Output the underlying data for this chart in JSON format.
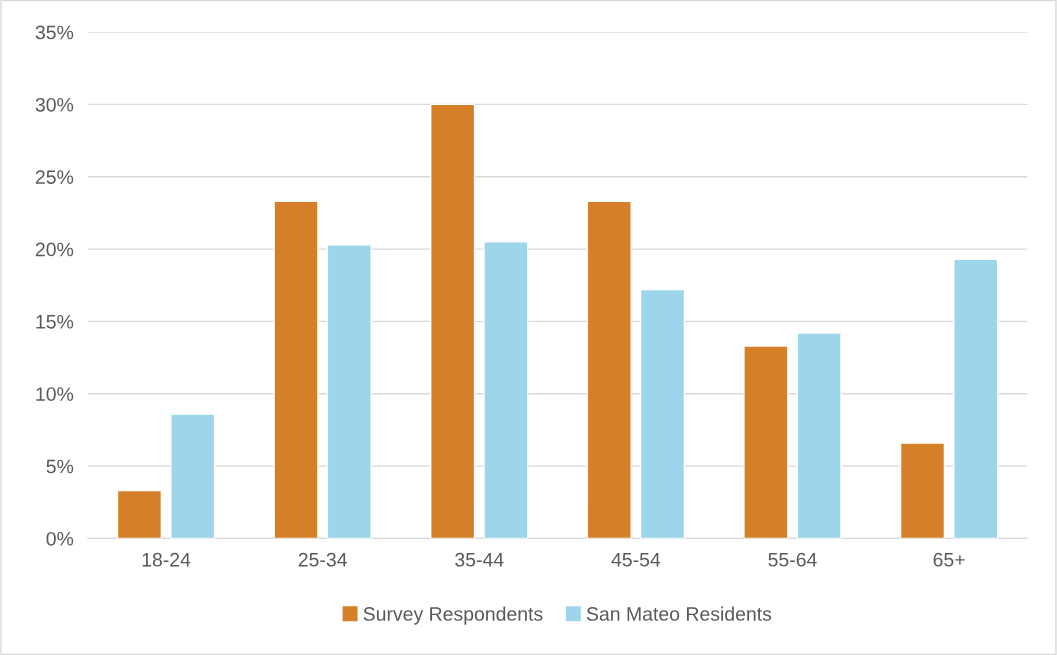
{
  "chart_data": {
    "type": "bar",
    "categories": [
      "18-24",
      "25-34",
      "35-44",
      "45-54",
      "55-64",
      "65+"
    ],
    "series": [
      {
        "name": "Survey Respondents",
        "color": "#d67f29",
        "values": [
          3.3,
          23.3,
          30.0,
          23.3,
          13.3,
          6.6
        ]
      },
      {
        "name": "San Mateo Residents",
        "color": "#9dd6ea",
        "values": [
          8.6,
          20.3,
          20.5,
          17.2,
          14.2,
          19.3
        ]
      }
    ],
    "ylim": [
      0,
      35
    ],
    "yticks": [
      {
        "value": 0,
        "label": "0%"
      },
      {
        "value": 5,
        "label": "5%"
      },
      {
        "value": 10,
        "label": "10%"
      },
      {
        "value": 15,
        "label": "15%"
      },
      {
        "value": 20,
        "label": "20%"
      },
      {
        "value": 25,
        "label": "25%"
      },
      {
        "value": 30,
        "label": "30%"
      },
      {
        "value": 35,
        "label": "35%"
      }
    ],
    "grid": "y",
    "legend": "bottom"
  }
}
